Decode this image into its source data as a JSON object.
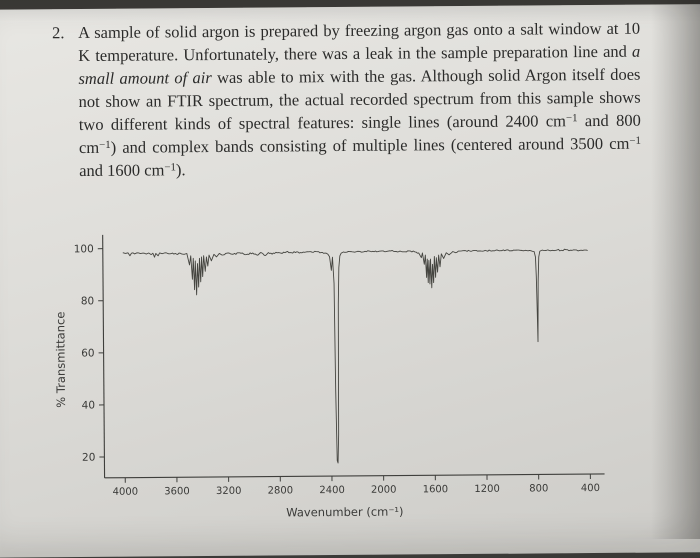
{
  "page": {
    "problem_number": "2.",
    "segments": [
      {
        "style": "normal",
        "text": "A sample of solid argon is prepared by freezing argon gas onto a salt window at 10 K temperature.  Unfortunately, there was a leak in the sample preparation line and "
      },
      {
        "style": "italic",
        "text": "a small amount of air"
      },
      {
        "style": "normal",
        "text": " was able to mix with the gas.  Although solid Argon itself does not show an FTIR spectrum, the actual recorded spectrum from this sample shows two different kinds of spectral features: single lines (around 2400 cm"
      },
      {
        "style": "sup",
        "text": "−1"
      },
      {
        "style": "normal",
        "text": " and 800 cm"
      },
      {
        "style": "sup",
        "text": "−1"
      },
      {
        "style": "normal",
        "text": ") and complex bands consisting of multiple lines (centered around 3500 cm"
      },
      {
        "style": "sup",
        "text": "−1"
      },
      {
        "style": "normal",
        "text": " and 1600 cm"
      },
      {
        "style": "sup",
        "text": "−1"
      },
      {
        "style": "normal",
        "text": ")."
      }
    ]
  },
  "chart_data": {
    "type": "line",
    "title": "",
    "xlabel": "Wavenumber (cm⁻¹)",
    "ylabel": "% Transmittance",
    "x_ticks": [
      4000,
      3600,
      3200,
      2800,
      2400,
      2000,
      1600,
      1200,
      800,
      400
    ],
    "y_ticks": [
      100,
      80,
      60,
      40,
      20
    ],
    "xlim": [
      4160,
      290
    ],
    "ylim": [
      12,
      103
    ],
    "x_axis_reversed": true,
    "grid": false,
    "baseline_transmittance": 98,
    "features": [
      {
        "kind": "complex band",
        "center_cm1": 3450,
        "min_transmittance": 82
      },
      {
        "kind": "single line",
        "center_cm1": 2352,
        "min_transmittance": 17
      },
      {
        "kind": "complex band",
        "center_cm1": 1620,
        "min_transmittance": 84
      },
      {
        "kind": "single line",
        "center_cm1": 797,
        "min_transmittance": 63
      }
    ],
    "points": [
      [
        4005,
        98.4
      ],
      [
        3985,
        98.1
      ],
      [
        3965,
        98.3
      ],
      [
        3950,
        97.2
      ],
      [
        3938,
        98.2
      ],
      [
        3915,
        97.9
      ],
      [
        3895,
        98.3
      ],
      [
        3870,
        98.0
      ],
      [
        3848,
        98.2
      ],
      [
        3825,
        97.8
      ],
      [
        3805,
        98.2
      ],
      [
        3785,
        97.6
      ],
      [
        3772,
        98.1
      ],
      [
        3760,
        96.6
      ],
      [
        3750,
        98.0
      ],
      [
        3732,
        97.1
      ],
      [
        3720,
        98.2
      ],
      [
        3700,
        97.9
      ],
      [
        3680,
        98.2
      ],
      [
        3650,
        97.8
      ],
      [
        3620,
        98.1
      ],
      [
        3590,
        97.7
      ],
      [
        3560,
        98.0
      ],
      [
        3530,
        97.6
      ],
      [
        3510,
        97.9
      ],
      [
        3490,
        93.5
      ],
      [
        3480,
        97.0
      ],
      [
        3468,
        88.0
      ],
      [
        3460,
        96.0
      ],
      [
        3452,
        84.0
      ],
      [
        3445,
        95.0
      ],
      [
        3436,
        82.0
      ],
      [
        3428,
        94.0
      ],
      [
        3420,
        85.0
      ],
      [
        3412,
        96.0
      ],
      [
        3404,
        87.0
      ],
      [
        3396,
        96.5
      ],
      [
        3388,
        89.0
      ],
      [
        3380,
        97.0
      ],
      [
        3368,
        91.0
      ],
      [
        3358,
        96.5
      ],
      [
        3348,
        93.0
      ],
      [
        3338,
        97.2
      ],
      [
        3320,
        95.0
      ],
      [
        3300,
        97.5
      ],
      [
        3280,
        96.5
      ],
      [
        3258,
        97.8
      ],
      [
        3238,
        97.2
      ],
      [
        3200,
        97.9
      ],
      [
        3150,
        97.5
      ],
      [
        3100,
        98.0
      ],
      [
        3050,
        97.3
      ],
      [
        3000,
        97.9
      ],
      [
        2960,
        97.0
      ],
      [
        2940,
        98.0
      ],
      [
        2900,
        96.9
      ],
      [
        2878,
        98.0
      ],
      [
        2850,
        97.4
      ],
      [
        2820,
        98.1
      ],
      [
        2780,
        97.7
      ],
      [
        2740,
        98.2
      ],
      [
        2700,
        97.9
      ],
      [
        2660,
        98.2
      ],
      [
        2620,
        97.8
      ],
      [
        2580,
        98.2
      ],
      [
        2540,
        98.0
      ],
      [
        2500,
        98.2
      ],
      [
        2460,
        97.9
      ],
      [
        2430,
        97.6
      ],
      [
        2405,
        96.2
      ],
      [
        2392,
        91.0
      ],
      [
        2383,
        96.0
      ],
      [
        2372,
        86.0
      ],
      [
        2366,
        45.0
      ],
      [
        2358,
        18.0
      ],
      [
        2352,
        17.0
      ],
      [
        2346,
        28.0
      ],
      [
        2340,
        78.0
      ],
      [
        2334,
        92.0
      ],
      [
        2326,
        96.5
      ],
      [
        2315,
        97.6
      ],
      [
        2298,
        98.0
      ],
      [
        2260,
        98.2
      ],
      [
        2220,
        98.0
      ],
      [
        2180,
        98.2
      ],
      [
        2140,
        98.0
      ],
      [
        2100,
        98.3
      ],
      [
        2060,
        98.0
      ],
      [
        2020,
        98.2
      ],
      [
        1980,
        98.0
      ],
      [
        1940,
        98.3
      ],
      [
        1900,
        98.0
      ],
      [
        1860,
        98.2
      ],
      [
        1820,
        97.9
      ],
      [
        1780,
        98.2
      ],
      [
        1745,
        97.8
      ],
      [
        1715,
        97.4
      ],
      [
        1695,
        95.6
      ],
      [
        1686,
        97.4
      ],
      [
        1672,
        93.0
      ],
      [
        1664,
        96.6
      ],
      [
        1655,
        88.0
      ],
      [
        1649,
        95.0
      ],
      [
        1643,
        86.0
      ],
      [
        1637,
        94.5
      ],
      [
        1630,
        85.5
      ],
      [
        1624,
        95.0
      ],
      [
        1616,
        84.0
      ],
      [
        1609,
        93.0
      ],
      [
        1601,
        86.0
      ],
      [
        1594,
        96.0
      ],
      [
        1586,
        88.0
      ],
      [
        1579,
        95.5
      ],
      [
        1570,
        90.0
      ],
      [
        1561,
        96.5
      ],
      [
        1551,
        92.0
      ],
      [
        1540,
        97.0
      ],
      [
        1522,
        95.2
      ],
      [
        1502,
        97.4
      ],
      [
        1480,
        96.6
      ],
      [
        1452,
        97.8
      ],
      [
        1420,
        97.5
      ],
      [
        1395,
        98.0
      ],
      [
        1360,
        98.2
      ],
      [
        1320,
        98.0
      ],
      [
        1280,
        98.2
      ],
      [
        1240,
        98.0
      ],
      [
        1200,
        98.2
      ],
      [
        1160,
        98.0
      ],
      [
        1120,
        98.2
      ],
      [
        1080,
        98.0
      ],
      [
        1040,
        98.2
      ],
      [
        1000,
        98.0
      ],
      [
        960,
        98.2
      ],
      [
        920,
        98.1
      ],
      [
        880,
        98.0
      ],
      [
        845,
        97.9
      ],
      [
        822,
        97.6
      ],
      [
        812,
        95.5
      ],
      [
        806,
        88.0
      ],
      [
        801,
        74.0
      ],
      [
        797,
        63.0
      ],
      [
        792,
        86.0
      ],
      [
        786,
        95.5
      ],
      [
        778,
        97.7
      ],
      [
        750,
        98.0
      ],
      [
        715,
        98.2
      ],
      [
        680,
        98.0
      ],
      [
        645,
        98.1
      ],
      [
        610,
        98.0
      ],
      [
        575,
        98.2
      ],
      [
        540,
        98.0
      ],
      [
        505,
        98.1
      ],
      [
        470,
        97.9
      ],
      [
        435,
        98.0
      ],
      [
        408,
        97.8
      ]
    ]
  }
}
